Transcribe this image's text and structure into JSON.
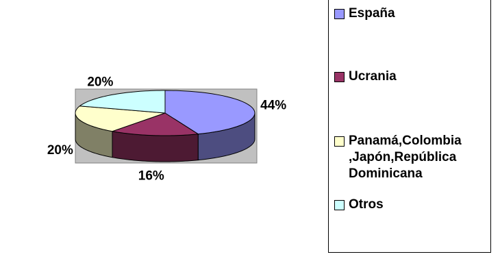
{
  "chart_data": {
    "type": "pie3d",
    "categories": [
      "España",
      "Ucrania",
      "Panamá,Colombia ,Japón,República Dominicana",
      "Otros"
    ],
    "values": [
      44,
      16,
      20,
      20
    ],
    "value_labels": [
      "44%",
      "16%",
      "20%",
      "20%"
    ],
    "colors": [
      "#9999ff",
      "#993366",
      "#ffffcc",
      "#ccffff"
    ],
    "legend": "right"
  }
}
